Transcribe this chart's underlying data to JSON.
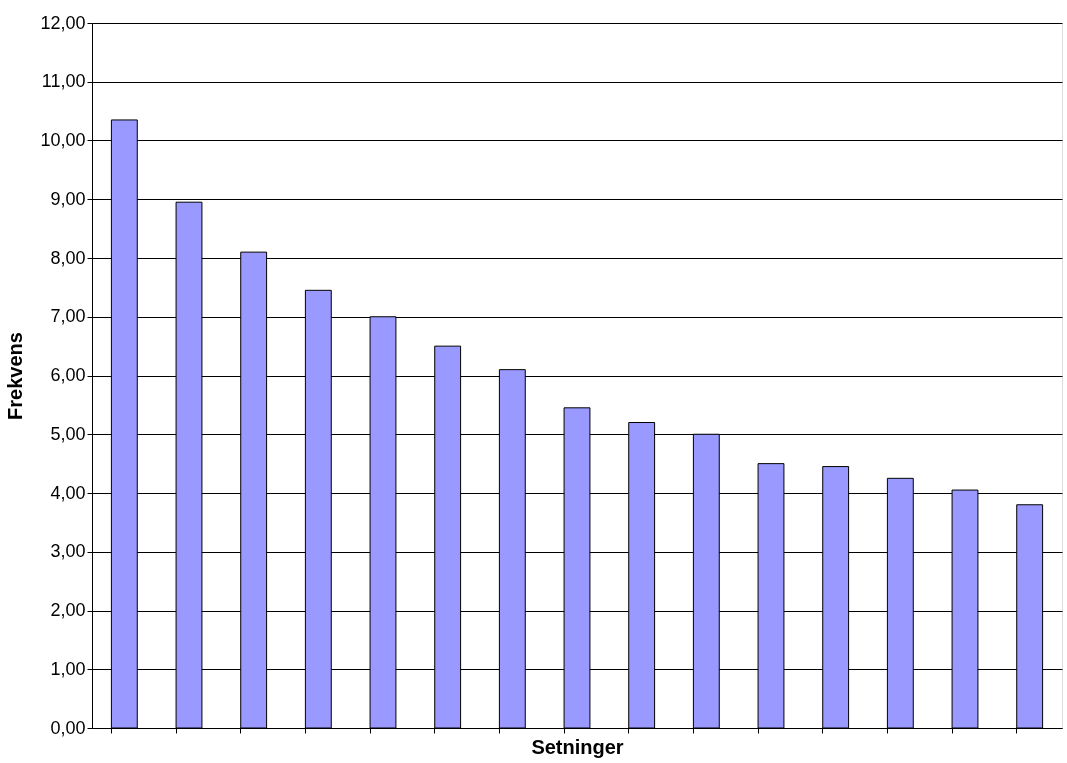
{
  "chart_data": {
    "type": "bar",
    "xlabel": "Setninger",
    "ylabel": "Frekvens",
    "categories": [
      null,
      null,
      null,
      null,
      null,
      null,
      null,
      null,
      null,
      null,
      null,
      null,
      null,
      null,
      null
    ],
    "values": [
      10.35,
      8.95,
      8.1,
      7.45,
      7.0,
      6.5,
      6.1,
      5.45,
      5.2,
      5.0,
      4.5,
      4.45,
      4.25,
      4.05,
      3.8
    ],
    "color": "#9999ff",
    "ylim": [
      0,
      12
    ],
    "yticks": [
      {
        "value": 0,
        "label": "0,00"
      },
      {
        "value": 1,
        "label": "1,00"
      },
      {
        "value": 2,
        "label": "2,00"
      },
      {
        "value": 3,
        "label": "3,00"
      },
      {
        "value": 4,
        "label": "4,00"
      },
      {
        "value": 5,
        "label": "5,00"
      },
      {
        "value": 6,
        "label": "6,00"
      },
      {
        "value": 7,
        "label": "7,00"
      },
      {
        "value": 8,
        "label": "8,00"
      },
      {
        "value": 9,
        "label": "9,00"
      },
      {
        "value": 10,
        "label": "10,00"
      },
      {
        "value": 11,
        "label": "11,00"
      },
      {
        "value": 12,
        "label": "12,00"
      }
    ],
    "grid": "y",
    "tick_labels": "y"
  }
}
